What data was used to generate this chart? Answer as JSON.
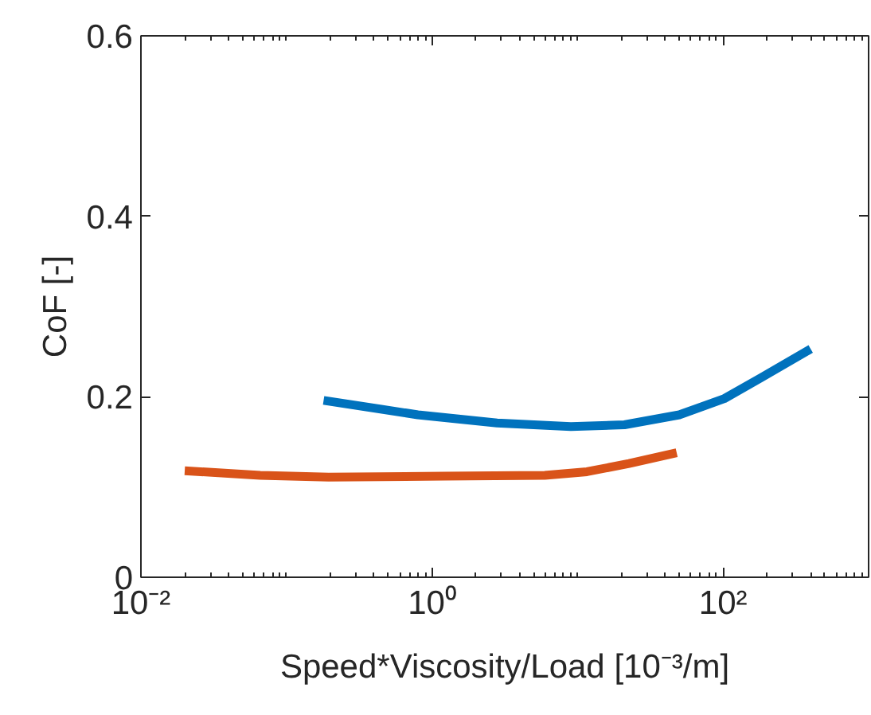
{
  "chart_data": {
    "type": "line",
    "xlabel": "Speed*Viscosity/Load [10⁻³/m]",
    "ylabel": "CoF [-]",
    "log": "x",
    "xlim": [
      0.01,
      1000
    ],
    "xticks": [
      {
        "value": 0.01,
        "label": "10⁻²"
      },
      {
        "value": 1,
        "label": "10⁰"
      },
      {
        "value": 100,
        "label": "10²"
      }
    ],
    "ylim": [
      0,
      0.6
    ],
    "yticks": [
      0,
      0.2,
      0.4,
      0.6
    ],
    "grid": false,
    "marker": "none",
    "line_style": "solid",
    "series": [
      {
        "color": "#0072bd",
        "x": [
          0.18,
          0.8,
          2.8,
          9,
          21,
          50,
          102,
          182,
          400
        ],
        "values": [
          0.196,
          0.18,
          0.171,
          0.167,
          0.169,
          0.18,
          0.198,
          0.221,
          0.253
        ]
      },
      {
        "color": "#d95319",
        "x": [
          0.02,
          0.066,
          0.195,
          1.22,
          5.96,
          11.6,
          22.6,
          48
        ],
        "values": [
          0.118,
          0.113,
          0.111,
          0.112,
          0.113,
          0.117,
          0.126,
          0.138
        ]
      }
    ]
  }
}
